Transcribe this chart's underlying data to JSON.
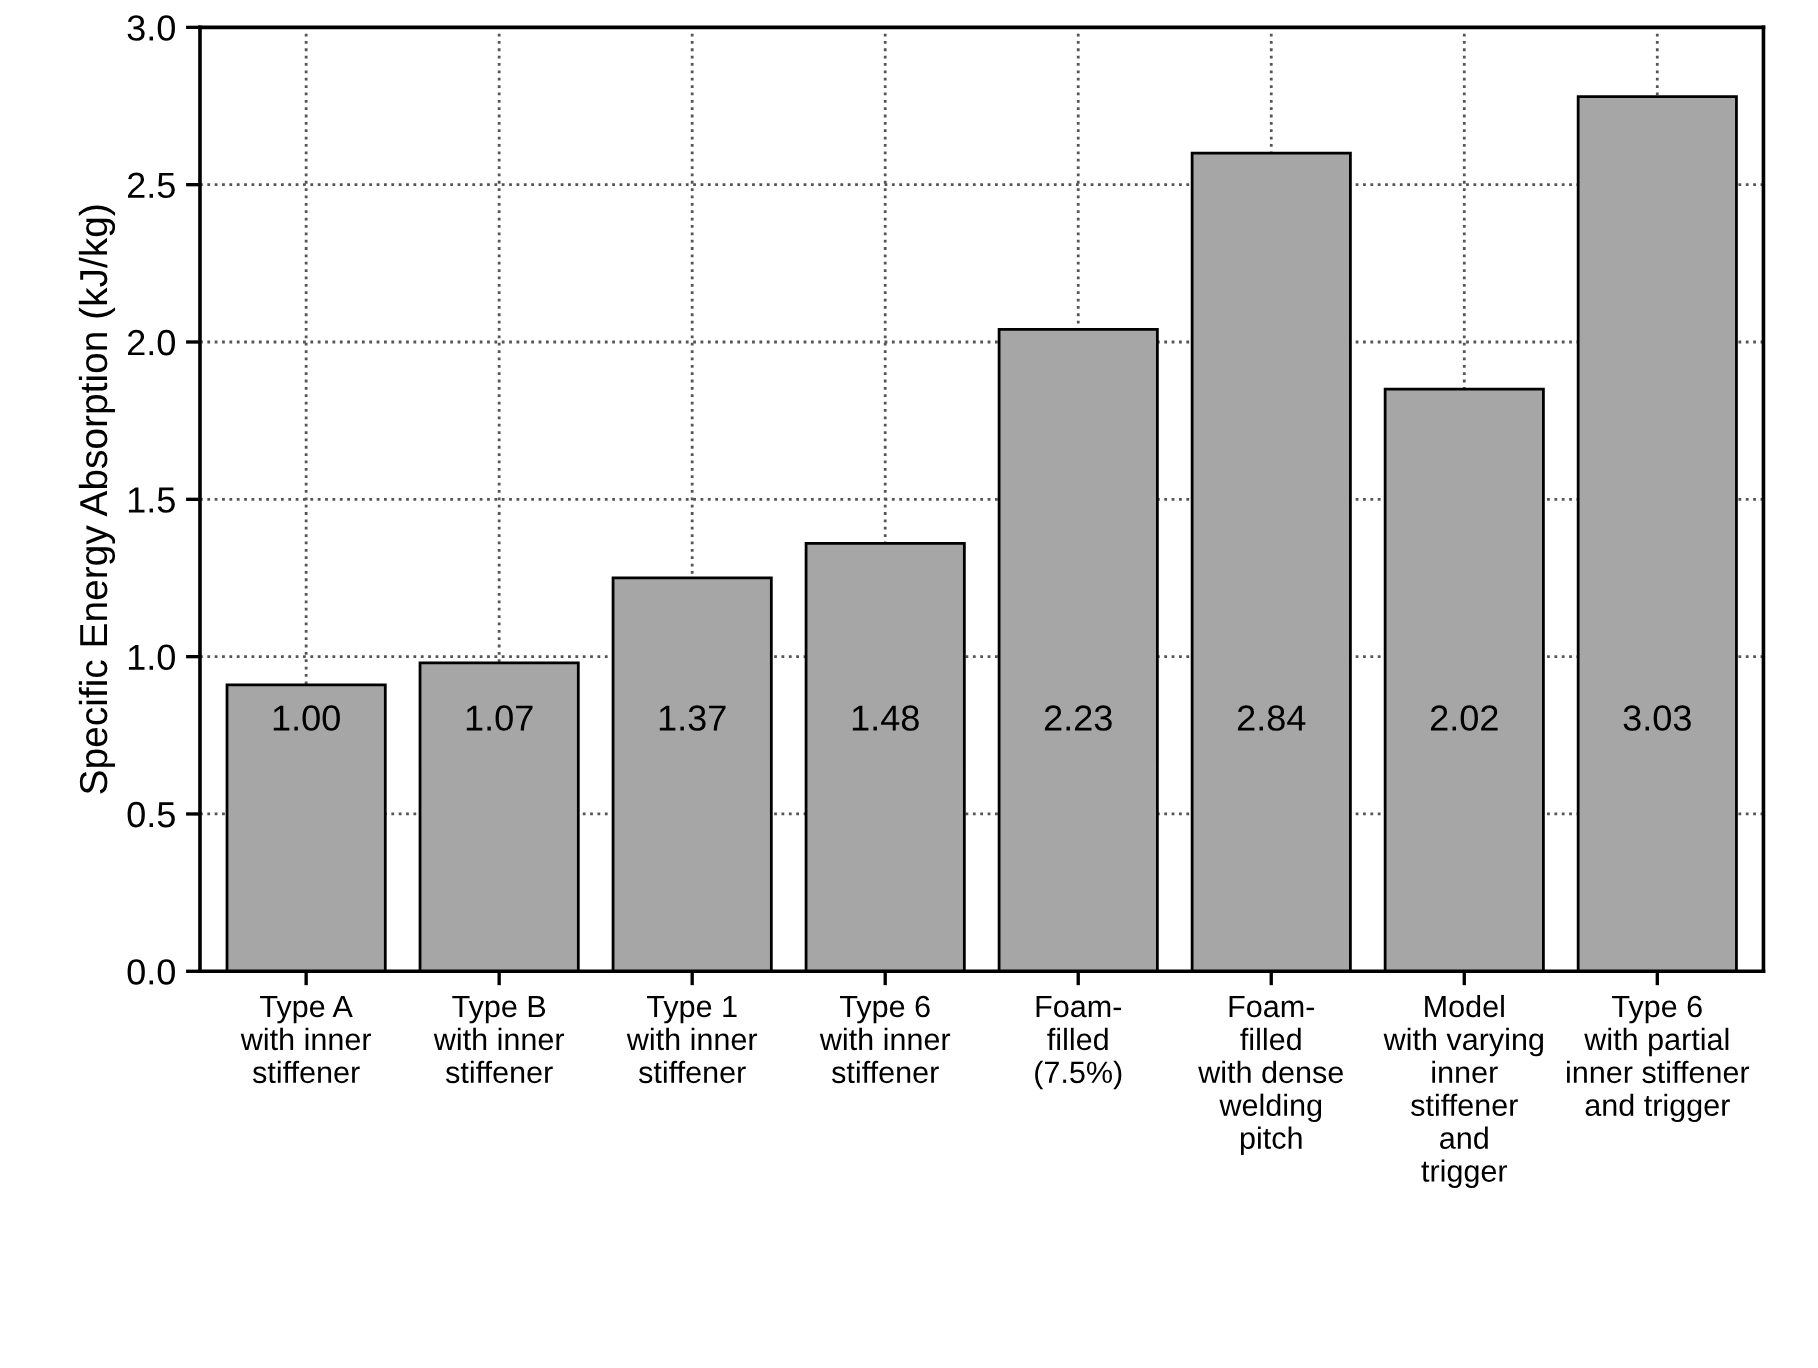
{
  "chart_data": {
    "type": "bar",
    "ylabel": "Specific Energy Absorption (kJ/kg)",
    "categories": [
      "Type A\nwith inner\nstiffener",
      "Type B\nwith inner\nstiffener",
      "Type 1\nwith inner\nstiffener",
      "Type 6\nwith inner\nstiffener",
      "Foam-\nfilled\n(7.5%)",
      "Foam-\nfilled\nwith dense\nwelding\npitch",
      "Model\nwith varying\ninner\nstiffener\nand\ntrigger",
      "Type 6\nwith partial\ninner stiffener\nand trigger"
    ],
    "values": [
      0.91,
      0.98,
      1.25,
      1.36,
      2.04,
      2.6,
      1.85,
      2.78
    ],
    "color": "#a6a6a6",
    "ylim": [
      0,
      3.0
    ],
    "yticks": [
      {
        "value": 0,
        "label": "0.0"
      },
      0.5,
      {
        "value": 1,
        "label": "1.0"
      },
      1.5,
      {
        "value": 2,
        "label": "2.0"
      },
      2.5,
      {
        "value": 3,
        "label": "3.0"
      }
    ],
    "grid": true,
    "annotations": [
      "1.00",
      "1.07",
      "1.37",
      "1.48",
      "2.23",
      "2.84",
      "2.02",
      "3.03"
    ]
  }
}
